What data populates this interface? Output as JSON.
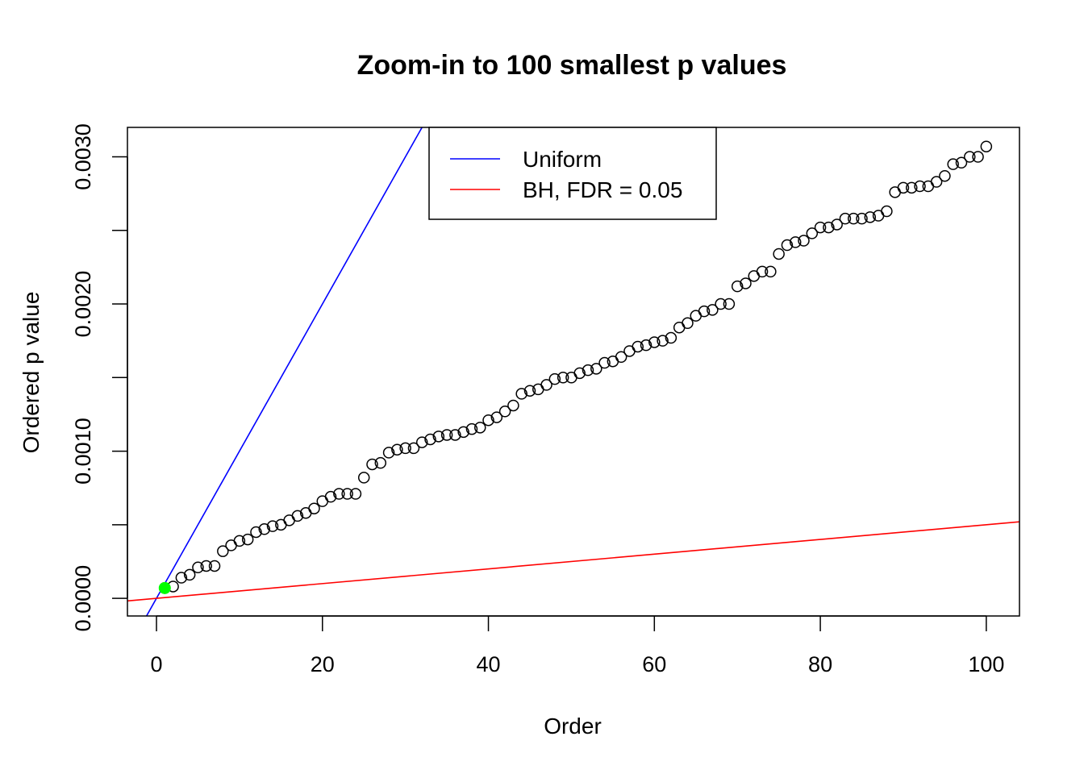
{
  "chart_data": {
    "type": "scatter",
    "title": "Zoom-in to 100 smallest p values",
    "xlabel": "Order",
    "ylabel": "Ordered p value",
    "xlim": [
      -3.5,
      104
    ],
    "ylim": [
      -0.00012,
      0.0032
    ],
    "x_ticks": [
      0,
      20,
      40,
      60,
      80,
      100
    ],
    "x_tick_labels": [
      "0",
      "20",
      "40",
      "60",
      "80",
      "100"
    ],
    "y_ticks": [
      0,
      0.0005,
      0.001,
      0.0015,
      0.002,
      0.0025,
      0.003
    ],
    "y_tick_labels": [
      "0.0000",
      "",
      "0.0010",
      "",
      "0.0020",
      "",
      "0.0030"
    ],
    "grid": false,
    "legend_position": "top-center",
    "legend": [
      {
        "label": "Uniform",
        "color": "#0000ff"
      },
      {
        "label": "BH, FDR = 0.05",
        "color": "#ff0000"
      }
    ],
    "lines": [
      {
        "name": "Uniform",
        "color": "#0000ff",
        "slope": 0.0001,
        "intercept": 0
      },
      {
        "name": "BH, FDR = 0.05",
        "color": "#ff0000",
        "slope": 5e-06,
        "intercept": 0
      }
    ],
    "highlight_point": {
      "x": 1,
      "y": 7e-05,
      "color": "#00ff00"
    },
    "series": [
      {
        "marker": "open-circle",
        "color": "#000000",
        "x": [
          1,
          2,
          3,
          4,
          5,
          6,
          7,
          8,
          9,
          10,
          11,
          12,
          13,
          14,
          15,
          16,
          17,
          18,
          19,
          20,
          21,
          22,
          23,
          24,
          25,
          26,
          27,
          28,
          29,
          30,
          31,
          32,
          33,
          34,
          35,
          36,
          37,
          38,
          39,
          40,
          41,
          42,
          43,
          44,
          45,
          46,
          47,
          48,
          49,
          50,
          51,
          52,
          53,
          54,
          55,
          56,
          57,
          58,
          59,
          60,
          61,
          62,
          63,
          64,
          65,
          66,
          67,
          68,
          69,
          70,
          71,
          72,
          73,
          74,
          75,
          76,
          77,
          78,
          79,
          80,
          81,
          82,
          83,
          84,
          85,
          86,
          87,
          88,
          89,
          90,
          91,
          92,
          93,
          94,
          95,
          96,
          97,
          98,
          99,
          100
        ],
        "y": [
          7e-05,
          8e-05,
          0.00014,
          0.00016,
          0.00021,
          0.00022,
          0.00022,
          0.00032,
          0.00036,
          0.00039,
          0.0004,
          0.00045,
          0.00047,
          0.00049,
          0.0005,
          0.00053,
          0.00056,
          0.00058,
          0.00061,
          0.00066,
          0.00069,
          0.00071,
          0.00071,
          0.00071,
          0.00082,
          0.00091,
          0.00092,
          0.00099,
          0.00101,
          0.00102,
          0.00102,
          0.00106,
          0.00108,
          0.0011,
          0.00111,
          0.00111,
          0.00113,
          0.00115,
          0.00116,
          0.00121,
          0.00123,
          0.00127,
          0.00131,
          0.00139,
          0.00141,
          0.00142,
          0.00145,
          0.00149,
          0.0015,
          0.0015,
          0.00153,
          0.00155,
          0.00156,
          0.0016,
          0.00161,
          0.00164,
          0.00168,
          0.00171,
          0.00172,
          0.00174,
          0.00175,
          0.00177,
          0.00184,
          0.00187,
          0.00192,
          0.00195,
          0.00196,
          0.002,
          0.002,
          0.00212,
          0.00214,
          0.00219,
          0.00222,
          0.00222,
          0.00234,
          0.0024,
          0.00242,
          0.00243,
          0.00248,
          0.00252,
          0.00252,
          0.00254,
          0.00258,
          0.00258,
          0.00258,
          0.00259,
          0.0026,
          0.00263,
          0.00276,
          0.00279,
          0.00279,
          0.0028,
          0.0028,
          0.00283,
          0.00287,
          0.00295,
          0.00296,
          0.003,
          0.003,
          0.00307
        ]
      }
    ]
  }
}
